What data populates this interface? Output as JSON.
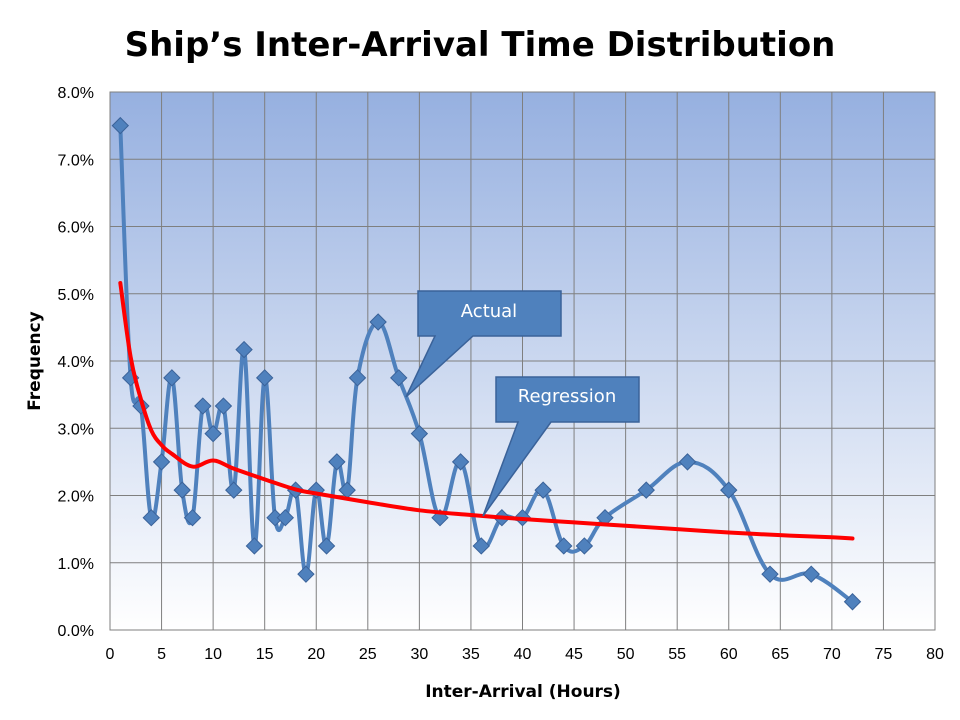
{
  "chart_data": {
    "type": "line",
    "title": "Ship’s Inter-Arrival Time  Distribution",
    "xlabel": "Inter-Arrival  (Hours)",
    "ylabel": "Frequency",
    "xlim": [
      0,
      80
    ],
    "ylim": [
      0,
      0.08
    ],
    "x_ticks": [
      0,
      5,
      10,
      15,
      20,
      25,
      30,
      35,
      40,
      45,
      50,
      55,
      60,
      65,
      70,
      75,
      80
    ],
    "y_ticks": [
      0,
      0.01,
      0.02,
      0.03,
      0.04,
      0.05,
      0.06,
      0.07,
      0.08
    ],
    "y_tick_labels": [
      "0.0%",
      "1.0%",
      "2.0%",
      "3.0%",
      "4.0%",
      "5.0%",
      "6.0%",
      "7.0%",
      "8.0%"
    ],
    "grid": true,
    "series": [
      {
        "name": "Actual",
        "style": "smoothed line with diamond markers",
        "color": "#4F81BD",
        "x": [
          1,
          2,
          3,
          4,
          5,
          6,
          7,
          8,
          9,
          10,
          11,
          12,
          13,
          14,
          15,
          16,
          17,
          18,
          19,
          20,
          21,
          22,
          23,
          24,
          26,
          28,
          30,
          32,
          34,
          36,
          38,
          40,
          42,
          44,
          46,
          48,
          52,
          56,
          60,
          64,
          68,
          72
        ],
        "y": [
          0.075,
          0.0375,
          0.0333,
          0.0167,
          0.025,
          0.0375,
          0.0208,
          0.0167,
          0.0333,
          0.0292,
          0.0333,
          0.0208,
          0.0417,
          0.0125,
          0.0375,
          0.0167,
          0.0167,
          0.0208,
          0.0083,
          0.0208,
          0.0125,
          0.025,
          0.0208,
          0.0375,
          0.0458,
          0.0375,
          0.0292,
          0.0167,
          0.025,
          0.0125,
          0.0167,
          0.0167,
          0.0208,
          0.0125,
          0.0125,
          0.0167,
          0.0208,
          0.025,
          0.0208,
          0.0083,
          0.0083,
          0.0042
        ]
      },
      {
        "name": "Regression",
        "style": "line",
        "color": "#FF0000",
        "x": [
          1,
          2,
          3,
          4,
          5,
          6,
          8,
          10,
          12,
          15,
          18,
          20,
          25,
          30,
          35,
          40,
          45,
          50,
          55,
          60,
          65,
          70,
          72
        ],
        "y": [
          0.0516,
          0.0406,
          0.0343,
          0.0297,
          0.0275,
          0.0262,
          0.0243,
          0.0252,
          0.024,
          0.0224,
          0.0209,
          0.0203,
          0.019,
          0.0178,
          0.0171,
          0.0165,
          0.016,
          0.0155,
          0.015,
          0.0145,
          0.0141,
          0.0138,
          0.0136
        ]
      }
    ],
    "annotations": [
      {
        "text": "Actual",
        "target_series": "Actual",
        "style": "callout box"
      },
      {
        "text": "Regression",
        "target_series": "Regression",
        "style": "callout box"
      }
    ],
    "colors": {
      "plot_bg_top": "#96B0E0",
      "plot_bg_bottom": "#FFFFFF",
      "callout_fill": "#4F81BD",
      "gridline": "#7F7F7F"
    }
  }
}
